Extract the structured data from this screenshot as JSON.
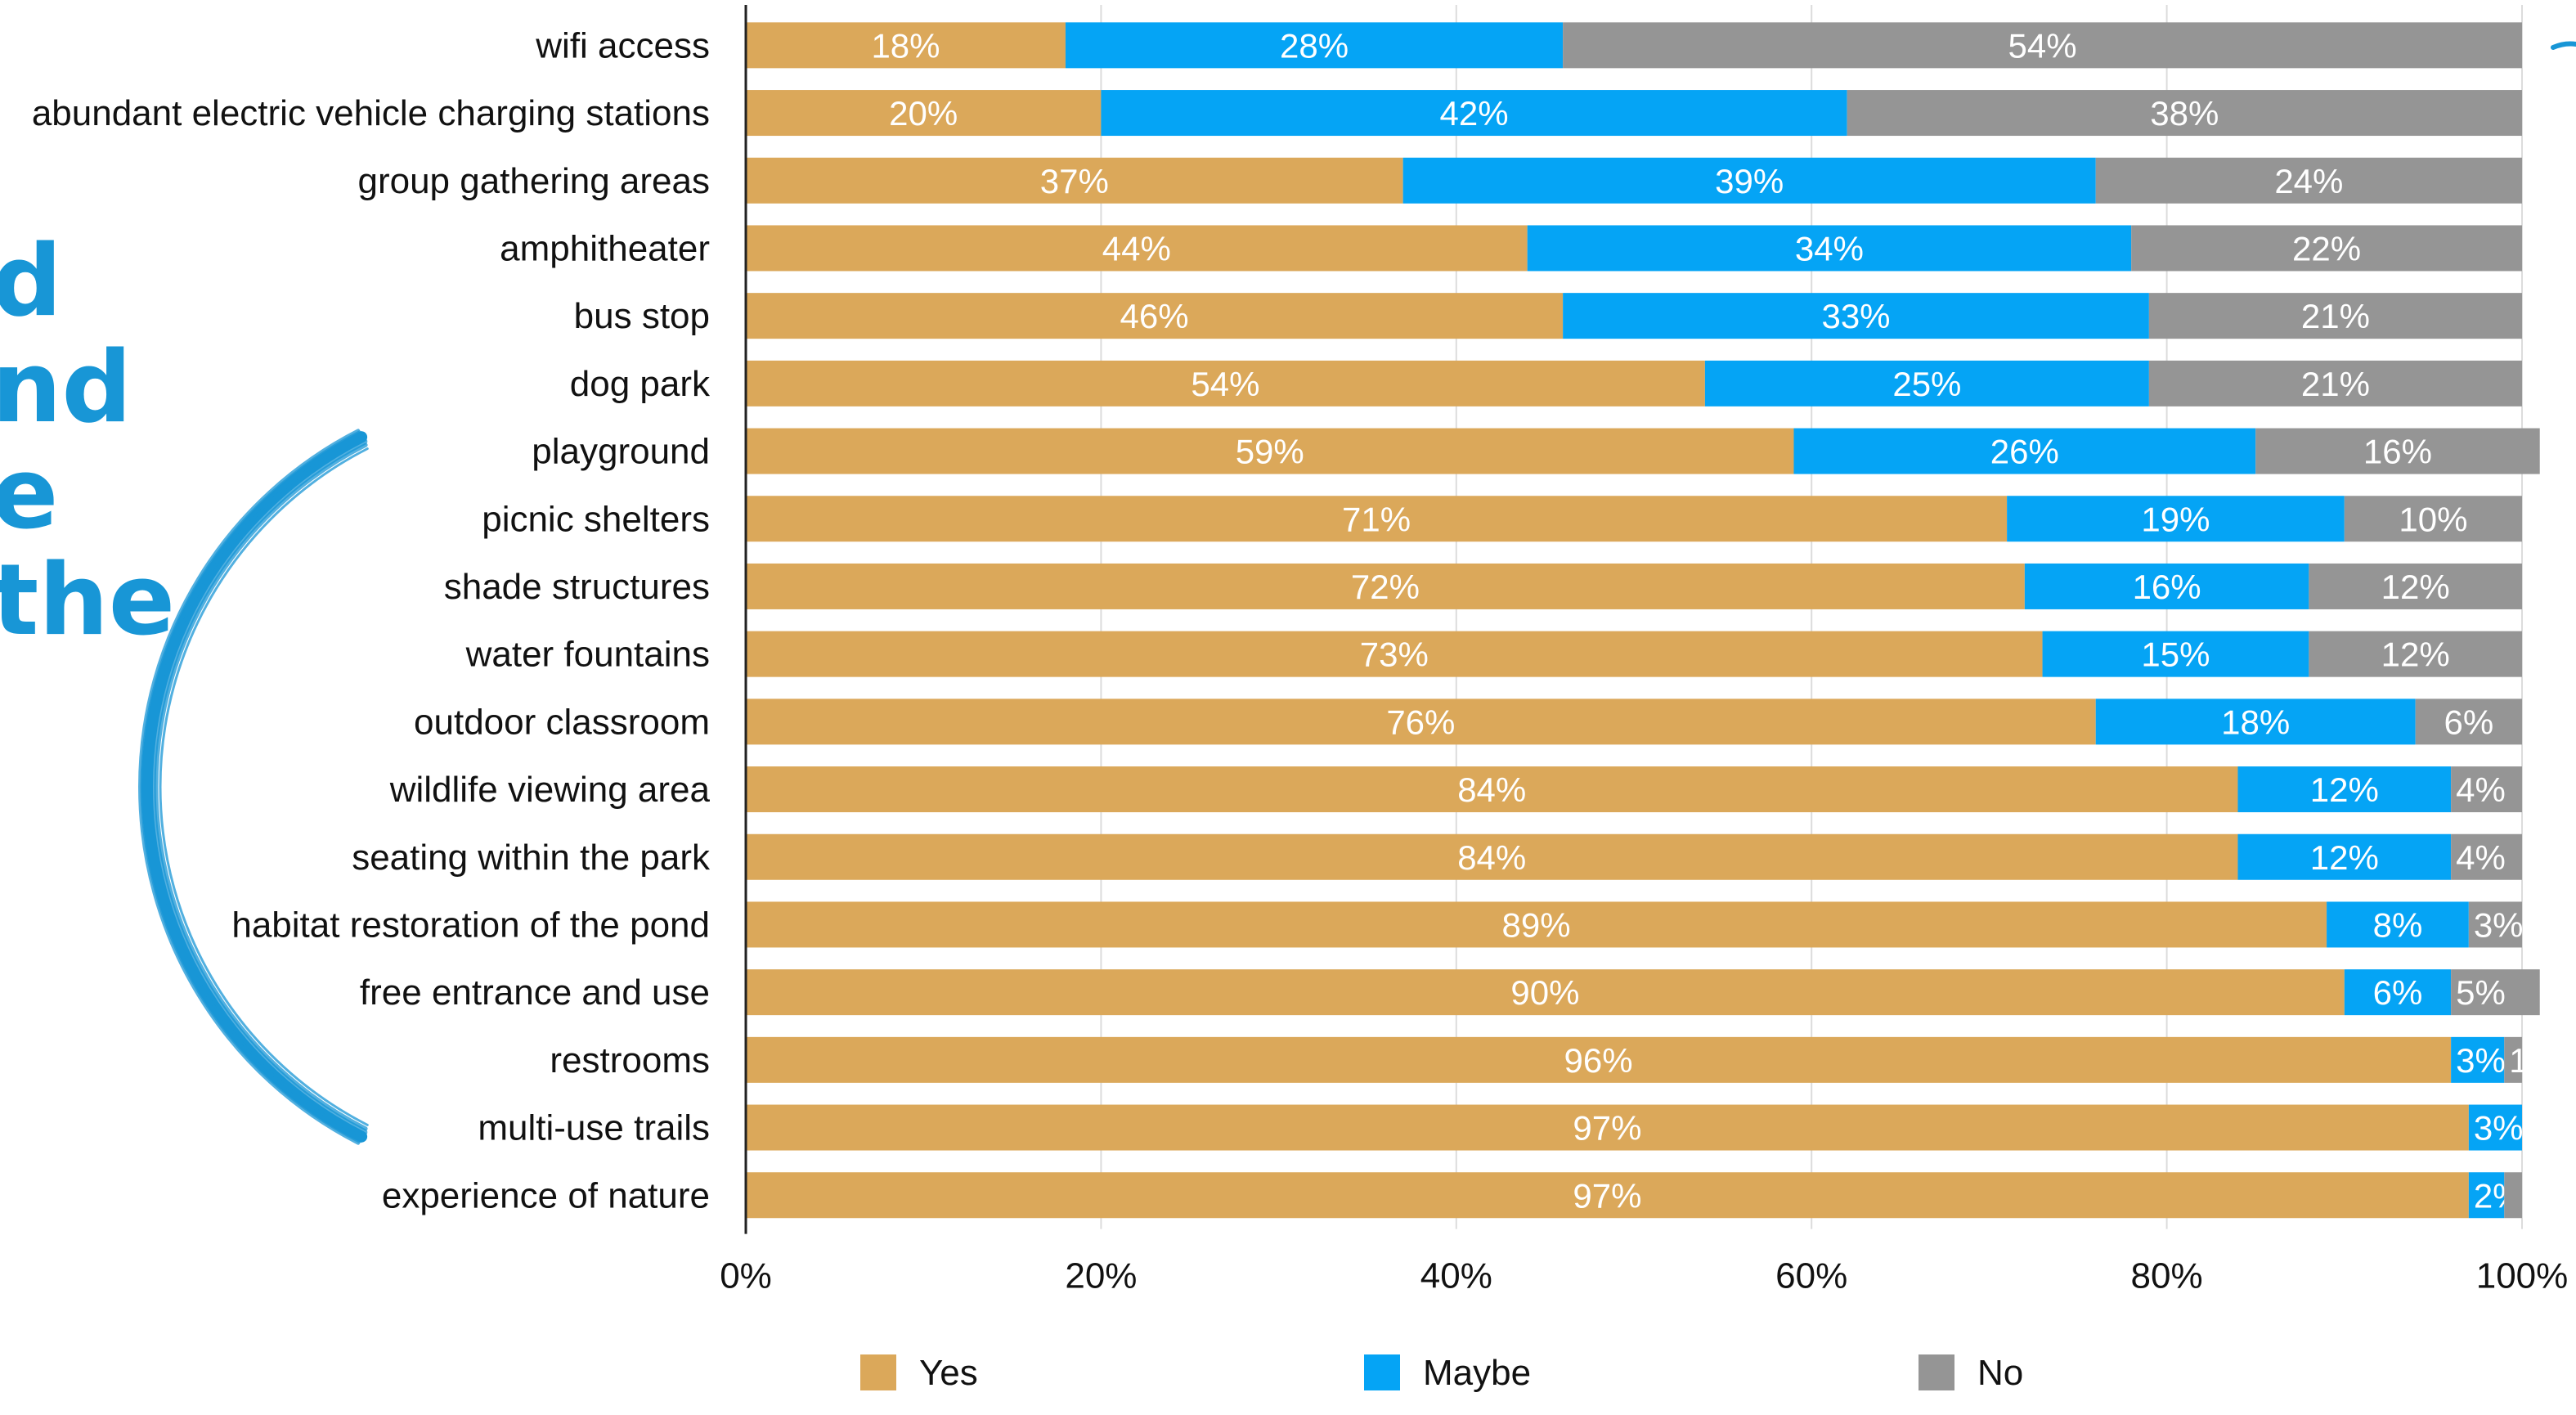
{
  "decoration": {
    "fragments": [
      "d",
      "nd",
      "e",
      "the"
    ],
    "color": "#1896d6"
  },
  "chart_data": {
    "type": "bar",
    "orientation": "horizontal",
    "stacked": true,
    "categories": [
      "wifi access",
      "abundant electric vehicle charging stations",
      "group gathering areas",
      "amphitheater",
      "bus stop",
      "dog park",
      "playground",
      "picnic shelters",
      "shade structures",
      "water fountains",
      "outdoor classroom",
      "wildlife viewing area",
      "seating within the park",
      "habitat restoration of the pond",
      "free entrance and use",
      "restrooms",
      "multi-use trails",
      "experience of nature"
    ],
    "series": [
      {
        "name": "Yes",
        "color": "#dba85a",
        "values": [
          18,
          20,
          37,
          44,
          46,
          54,
          59,
          71,
          72,
          73,
          76,
          84,
          84,
          89,
          90,
          96,
          97,
          97
        ],
        "labels": [
          "18%",
          "20%",
          "37%",
          "44%",
          "46%",
          "54%",
          "59%",
          "71%",
          "72%",
          "73%",
          "76%",
          "84%",
          "84%",
          "89%",
          "90%",
          "96%",
          "97%",
          "97%"
        ]
      },
      {
        "name": "Maybe",
        "color": "#05a4f5",
        "values": [
          28,
          42,
          39,
          34,
          33,
          25,
          26,
          19,
          16,
          15,
          18,
          12,
          12,
          8,
          6,
          3,
          3,
          2
        ],
        "labels": [
          "28%",
          "42%",
          "39%",
          "34%",
          "33%",
          "25%",
          "26%",
          "19%",
          "16%",
          "15%",
          "18%",
          "12%",
          "12%",
          "8%",
          "6%",
          "3%",
          "3%",
          "2%"
        ]
      },
      {
        "name": "No",
        "color": "#959595",
        "values": [
          54,
          38,
          24,
          22,
          21,
          21,
          16,
          10,
          12,
          12,
          6,
          4,
          4,
          3,
          5,
          1,
          0,
          1
        ],
        "labels": [
          "54%",
          "38%",
          "24%",
          "22%",
          "21%",
          "21%",
          "16%",
          "10%",
          "12%",
          "12%",
          "6%",
          "4%",
          "4%",
          "3%",
          "5%",
          "1",
          "",
          ""
        ]
      }
    ],
    "xlim": [
      0,
      100
    ],
    "xticks": [
      0,
      20,
      40,
      60,
      80,
      100
    ],
    "xtick_labels": [
      "0%",
      "20%",
      "40%",
      "60%",
      "80%",
      "100%"
    ],
    "grid": true,
    "legend_position": "bottom"
  }
}
